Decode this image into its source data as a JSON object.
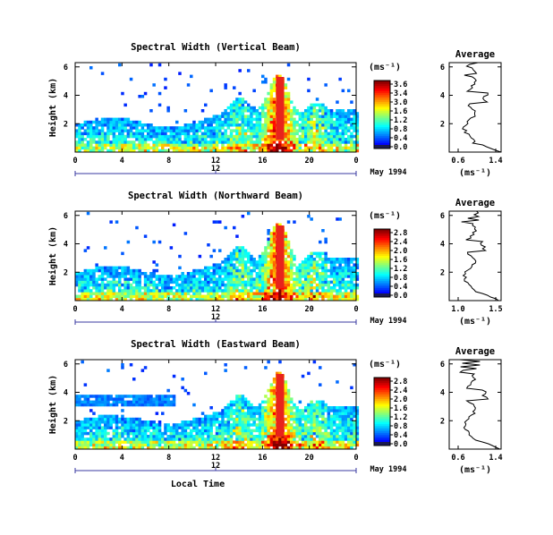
{
  "chart_data": [
    {
      "type": "heatmap",
      "title": "Spectral Width (Vertical Beam)",
      "ylabel": "Height (km)",
      "xticks": [
        "0",
        "4",
        "8",
        "12",
        "16",
        "20",
        "0"
      ],
      "yticks": [
        "6",
        "4",
        "2"
      ],
      "date_ticks": [
        "12"
      ],
      "date_label": "May 1994",
      "colorbar": {
        "unit": "(ms⁻¹)",
        "ticks": [
          "3.6",
          "3.4",
          "3.0",
          "1.6",
          "1.2",
          "0.8",
          "0.4",
          "0.0"
        ]
      },
      "inset": {
        "title": "Average",
        "xlabel": "(ms⁻¹)",
        "xticks": [
          "0.6",
          "1.4"
        ],
        "yticks": [
          "6",
          "4",
          "2"
        ]
      }
    },
    {
      "type": "heatmap",
      "title": "Spectral Width (Northward Beam)",
      "ylabel": "Height (km)",
      "xticks": [
        "0",
        "4",
        "8",
        "12",
        "16",
        "20",
        "0"
      ],
      "yticks": [
        "6",
        "4",
        "2"
      ],
      "date_ticks": [
        "12"
      ],
      "date_label": "May 1994",
      "colorbar": {
        "unit": "(ms⁻¹)",
        "ticks": [
          "2.8",
          "2.4",
          "2.0",
          "1.6",
          "1.2",
          "0.8",
          "0.4",
          "0.0"
        ]
      },
      "inset": {
        "title": "Average",
        "xlabel": "(ms⁻¹)",
        "xticks": [
          "1.0",
          "1.5"
        ],
        "yticks": [
          "6",
          "4",
          "2"
        ]
      }
    },
    {
      "type": "heatmap",
      "title": "Spectral Width (Eastward Beam)",
      "ylabel": "Height (km)",
      "xticks": [
        "0",
        "4",
        "8",
        "12",
        "16",
        "20",
        "0"
      ],
      "yticks": [
        "6",
        "4",
        "2"
      ],
      "date_ticks": [
        "12"
      ],
      "date_label": "May 1994",
      "colorbar": {
        "unit": "(ms⁻¹)",
        "ticks": [
          "2.8",
          "2.4",
          "2.0",
          "1.6",
          "1.2",
          "0.8",
          "0.4",
          "0.0"
        ]
      },
      "inset": {
        "title": "Average",
        "xlabel": "(ms⁻¹)",
        "xticks": [
          "0.6",
          "1.4"
        ],
        "yticks": [
          "6",
          "4",
          "2"
        ]
      },
      "xlabel": "Local Time"
    }
  ]
}
